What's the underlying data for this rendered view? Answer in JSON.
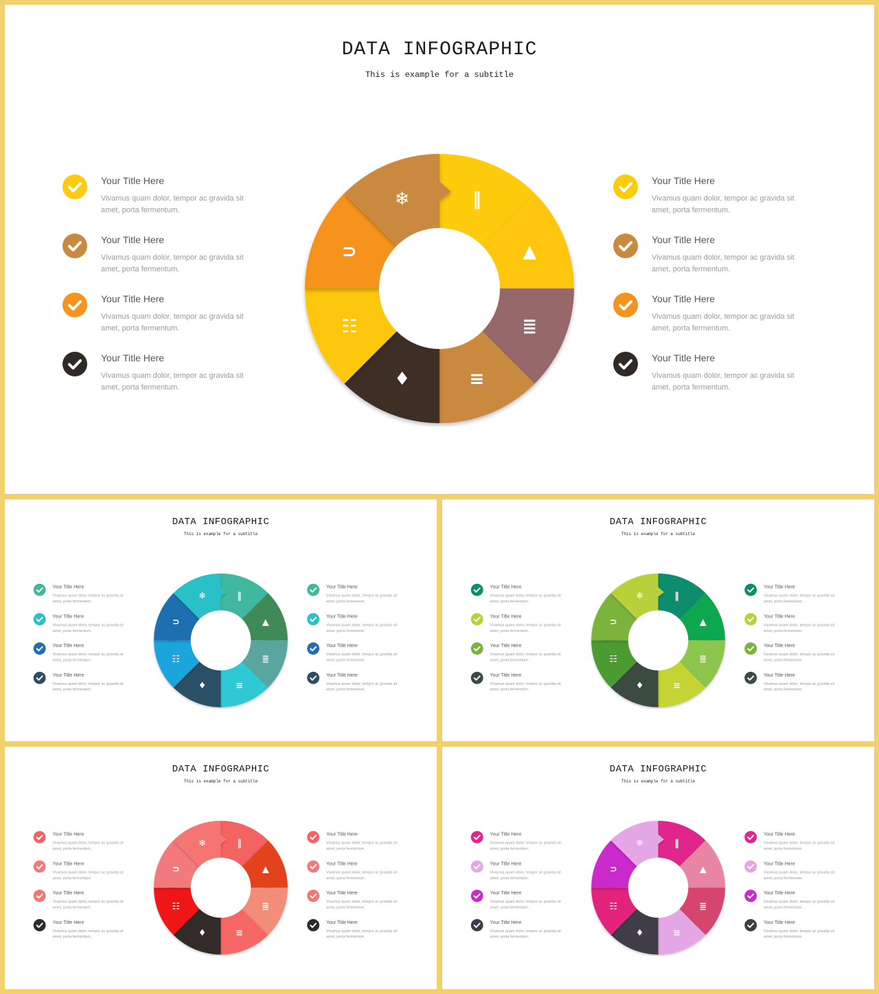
{
  "slide": {
    "title": "DATA INFOGRAPHIC",
    "subtitle": "This is example  for a subtitle",
    "item_title": "Your Title Here",
    "item_desc": "Vivamus quam dolor, tempor ac gravida sit amet, porta fermentum."
  },
  "segment_icons": [
    "film-icon",
    "traffic-cone-icon",
    "database-icon",
    "layers-icon",
    "flame-icon",
    "gift-icon",
    "magnet-icon",
    "snowflake-icon"
  ],
  "themes": [
    {
      "name": "yellow",
      "segments": [
        "#fecb0f",
        "#fec70e",
        "#97686b",
        "#c98a3f",
        "#3c2e27",
        "#fdc70e",
        "#f6931e",
        "#c98a3f"
      ],
      "checks": [
        "#fecb0f",
        "#c98a3f",
        "#f6931e",
        "#2f2a26"
      ]
    },
    {
      "name": "blue",
      "segments": [
        "#3fb8a0",
        "#3f8a58",
        "#5aa59f",
        "#2ec9d5",
        "#2c4f66",
        "#1ea4dc",
        "#1f6fb2",
        "#2cc0c8"
      ],
      "checks": [
        "#3fb8a0",
        "#2cc0c8",
        "#1f6fb2",
        "#2c4f66"
      ]
    },
    {
      "name": "green",
      "segments": [
        "#0f8c6e",
        "#0fa84e",
        "#8cc64f",
        "#c4d432",
        "#3a4c40",
        "#4c9a32",
        "#7cb33c",
        "#b8d13a"
      ],
      "checks": [
        "#0f8c6e",
        "#b8d13a",
        "#7cb33c",
        "#3a4c40"
      ]
    },
    {
      "name": "red",
      "segments": [
        "#f26462",
        "#e2431e",
        "#f28e78",
        "#f56766",
        "#35292a",
        "#f01416",
        "#f27a7b",
        "#f47572"
      ],
      "checks": [
        "#f26462",
        "#f27a7b",
        "#f47572",
        "#2f2a26"
      ]
    },
    {
      "name": "magenta",
      "segments": [
        "#e0268a",
        "#e884a4",
        "#d6456d",
        "#e4a6e4",
        "#3f3c49",
        "#e2207c",
        "#ca2ccc",
        "#e4a6e4"
      ],
      "checks": [
        "#e0268a",
        "#e4a6e4",
        "#ca2ccc",
        "#3f3c49"
      ]
    }
  ]
}
